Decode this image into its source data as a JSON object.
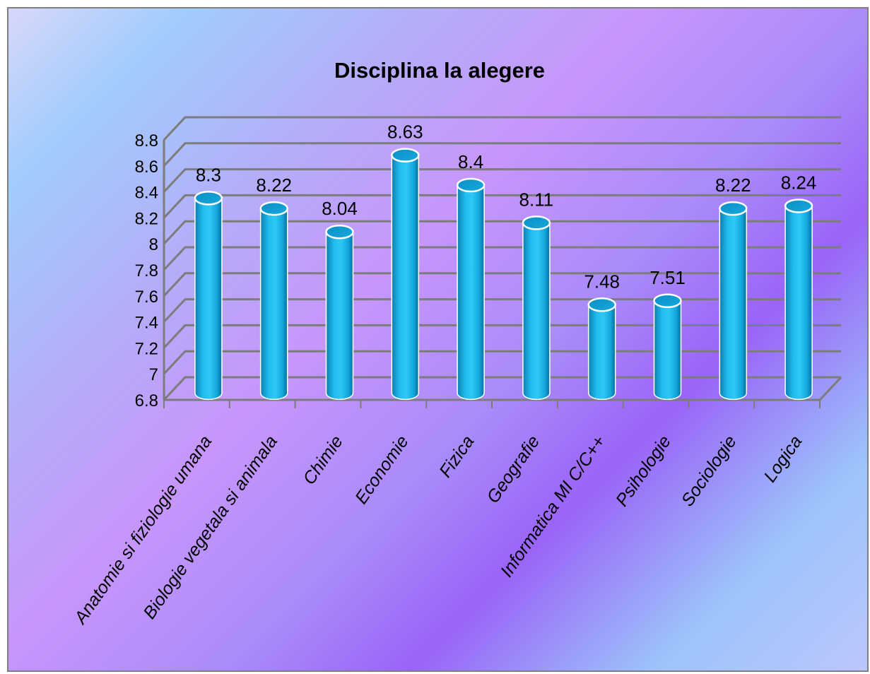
{
  "chart_data": {
    "type": "bar",
    "style": "3d-cylinder",
    "title": "Disciplina la alegere",
    "xlabel": "",
    "ylabel": "",
    "categories": [
      "Anatomie si fiziologie umana",
      "Biologie vegetala si animala",
      "Chimie",
      "Economie",
      "Fizica",
      "Geografie",
      "Informatica MI C/C++",
      "Psihologie",
      "Sociologie",
      "Logica"
    ],
    "values": [
      8.3,
      8.22,
      8.04,
      8.63,
      8.4,
      8.11,
      7.48,
      7.51,
      8.22,
      8.24
    ],
    "data_labels": [
      "8.3",
      "8.22",
      "8.04",
      "8.63",
      "8.4",
      "8.11",
      "7.48",
      "7.51",
      "8.22",
      "8.24"
    ],
    "ylim": [
      6.8,
      8.8
    ],
    "yticks": [
      "6.8",
      "7",
      "7.2",
      "7.4",
      "7.6",
      "7.8",
      "8",
      "8.2",
      "8.4",
      "8.6",
      "8.8"
    ],
    "grid": true,
    "legend": "none",
    "colors": {
      "bar_main": "#18b6ec",
      "bar_dark": "#0c86b6",
      "bar_light": "#9ae6fb",
      "gridline": "#7c7c7c",
      "text": "#000000"
    }
  }
}
